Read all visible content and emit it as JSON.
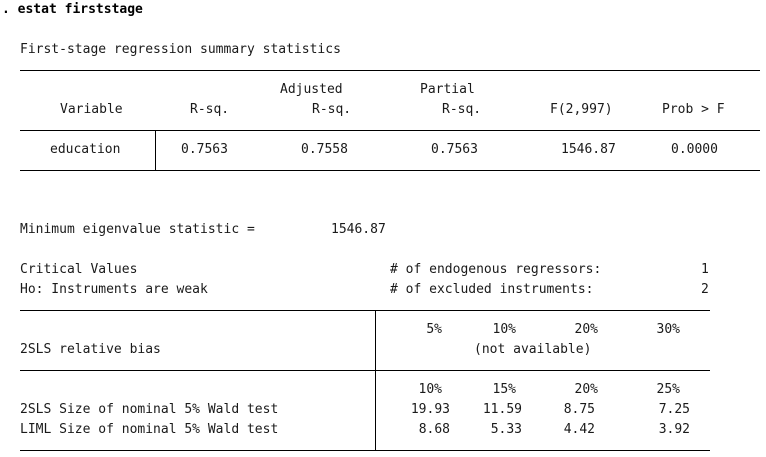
{
  "command": ". estat firststage",
  "first_stage": {
    "title": "First-stage regression summary statistics",
    "headers": {
      "variable": "Variable",
      "rsq": "R-sq.",
      "adj_top": "Adjusted",
      "adj_bottom": "R-sq.",
      "partial_top": "Partial",
      "partial_bottom": "R-sq.",
      "f": "F(2,997)",
      "prob": "Prob > F"
    },
    "row": {
      "variable": "education",
      "rsq": "0.7563",
      "adj_rsq": "0.7558",
      "partial_rsq": "0.7563",
      "f": "1546.87",
      "prob": "0.0000"
    }
  },
  "eigen": {
    "label": "Minimum eigenvalue statistic =",
    "value": "1546.87"
  },
  "critical": {
    "title": "Critical Values",
    "h0": "Ho: Instruments are weak",
    "endog_label": "# of endogenous regressors:",
    "endog_value": "1",
    "excl_label": "# of excluded instruments:",
    "excl_value": "2",
    "bias": {
      "label": "2SLS relative bias",
      "headers": [
        "5%",
        "10%",
        "20%",
        "30%"
      ],
      "note": "(not available)"
    },
    "size": {
      "headers": [
        "10%",
        "15%",
        "20%",
        "25%"
      ],
      "rows": [
        {
          "label": "2SLS Size of nominal 5% Wald test",
          "values": [
            "19.93",
            "11.59",
            "8.75",
            "7.25"
          ]
        },
        {
          "label": "LIML Size of nominal 5% Wald test",
          "values": [
            "8.68",
            "5.33",
            "4.42",
            "3.92"
          ]
        }
      ]
    }
  }
}
